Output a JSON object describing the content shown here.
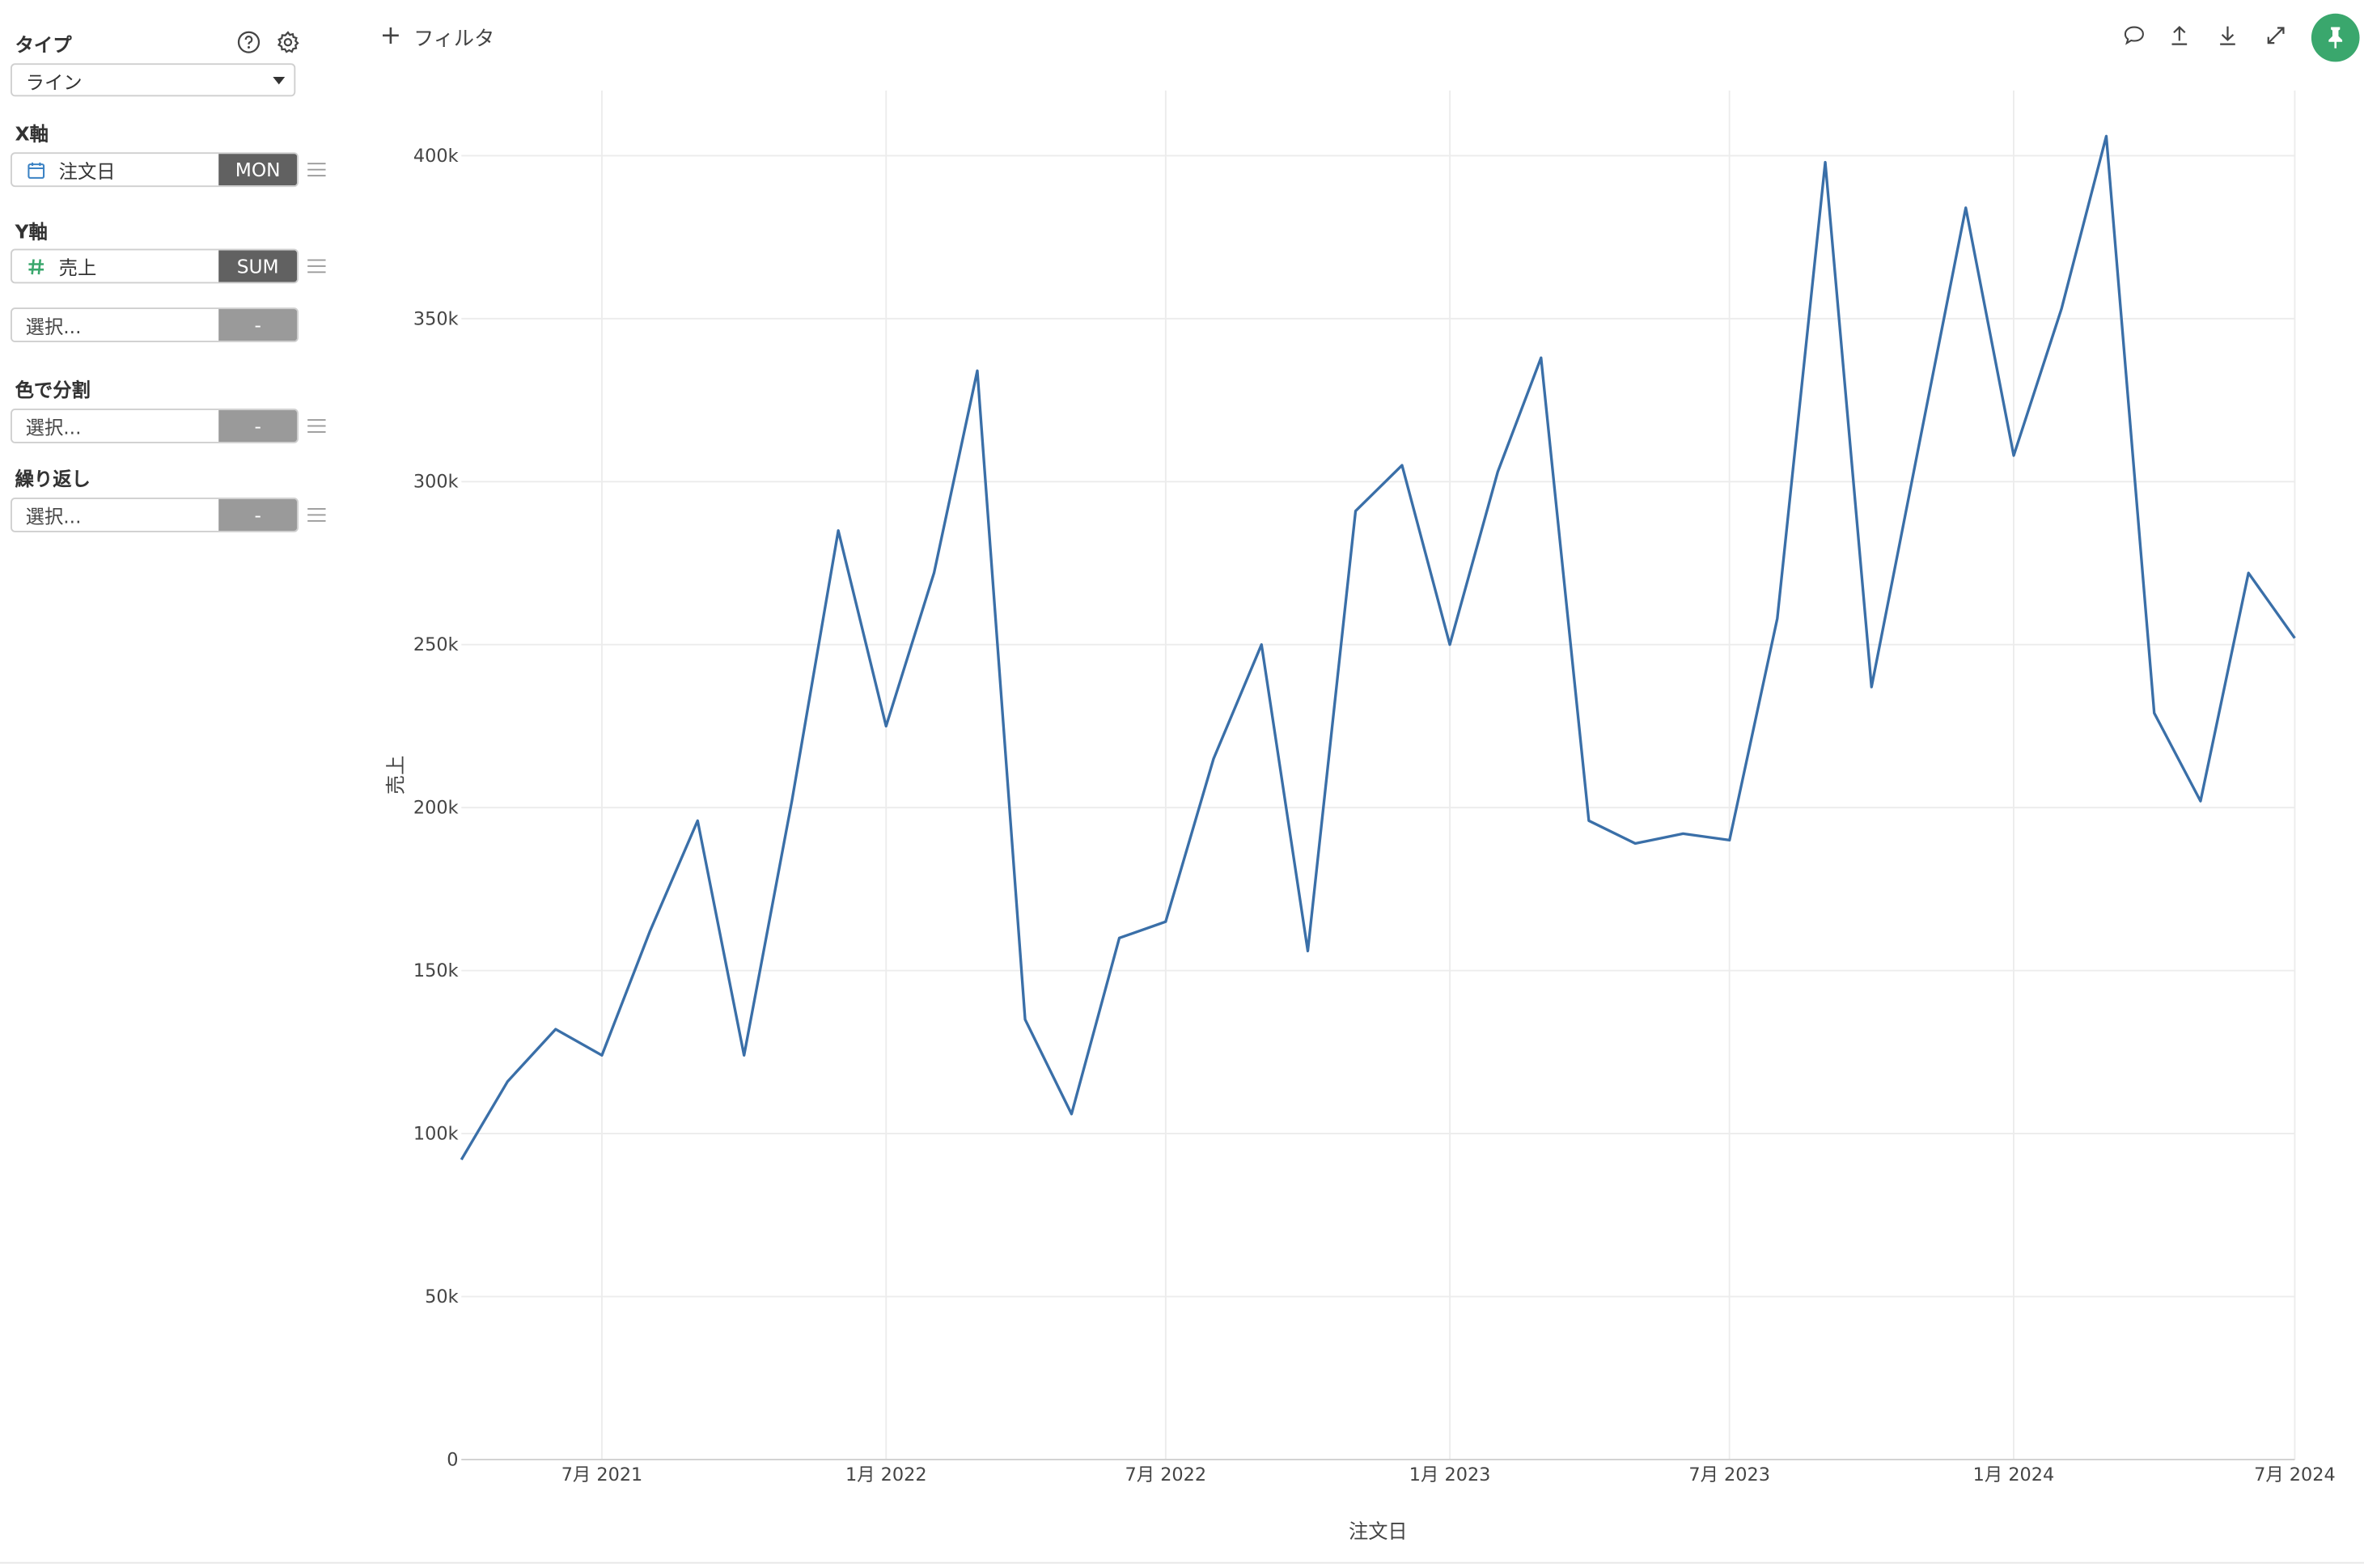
{
  "panel": {
    "type": {
      "label": "タイプ",
      "value": "ライン"
    },
    "x_axis": {
      "label": "X軸",
      "field": "注文日",
      "agg": "MON",
      "icon": "calendar-icon",
      "icon_color": "#3b82c4"
    },
    "y_axis": {
      "label": "Y軸",
      "field": "売上",
      "agg": "SUM",
      "icon": "hash-icon",
      "icon_color": "#3aa76d",
      "extra_placeholder": "選択...",
      "extra_agg": "-"
    },
    "color_split": {
      "label": "色で分割",
      "placeholder": "選択...",
      "agg": "-"
    },
    "repeat": {
      "label": "繰り返し",
      "placeholder": "選択...",
      "agg": "-"
    }
  },
  "toolbar": {
    "filter_label": "フィルタ",
    "icons": [
      "comment-icon",
      "upload-icon",
      "download-icon",
      "expand-icon",
      "pin-icon"
    ],
    "pin_color": "#3aa76d"
  },
  "chart_data": {
    "type": "line",
    "xlabel": "注文日",
    "ylabel": "売上",
    "ylim": [
      0,
      420000
    ],
    "yticks": [
      0,
      50000,
      100000,
      150000,
      200000,
      250000,
      300000,
      350000,
      400000
    ],
    "ytick_labels": [
      "0",
      "50k",
      "100k",
      "150k",
      "200k",
      "250k",
      "300k",
      "350k",
      "400k"
    ],
    "xlim": [
      "2021-04-01",
      "2024-07-01"
    ],
    "xticks": [
      "2021-07-01",
      "2022-01-01",
      "2022-07-01",
      "2023-01-01",
      "2023-07-01",
      "2024-01-01",
      "2024-07-01"
    ],
    "xtick_labels": [
      "7月 2021",
      "1月 2022",
      "7月 2022",
      "1月 2023",
      "7月 2023",
      "1月 2024",
      "7月 2024"
    ],
    "grid": true,
    "line_color": "#3a6fa8",
    "series": [
      {
        "x": [
          "2021-04",
          "2021-05",
          "2021-06",
          "2021-07",
          "2021-08",
          "2021-09",
          "2021-10",
          "2021-11",
          "2021-12",
          "2022-01",
          "2022-02",
          "2022-03",
          "2022-04",
          "2022-05",
          "2022-06",
          "2022-07",
          "2022-08",
          "2022-09",
          "2022-10",
          "2022-11",
          "2022-12",
          "2023-01",
          "2023-02",
          "2023-03",
          "2023-04",
          "2023-05",
          "2023-06",
          "2023-07",
          "2023-08",
          "2023-09",
          "2023-10",
          "2023-11",
          "2023-12",
          "2024-01",
          "2024-02",
          "2024-03",
          "2024-04",
          "2024-05",
          "2024-06",
          "2024-07"
        ],
        "values": [
          92000,
          116000,
          132000,
          124000,
          162000,
          196000,
          124000,
          202000,
          285000,
          225000,
          272000,
          334000,
          135000,
          106000,
          160000,
          165000,
          215000,
          250000,
          156000,
          291000,
          305000,
          250000,
          303000,
          338000,
          196000,
          189000,
          192000,
          190000,
          258000,
          398000,
          237000,
          312000,
          384000,
          308000,
          353000,
          406000,
          229000,
          202000,
          272000,
          252000
        ]
      }
    ]
  }
}
